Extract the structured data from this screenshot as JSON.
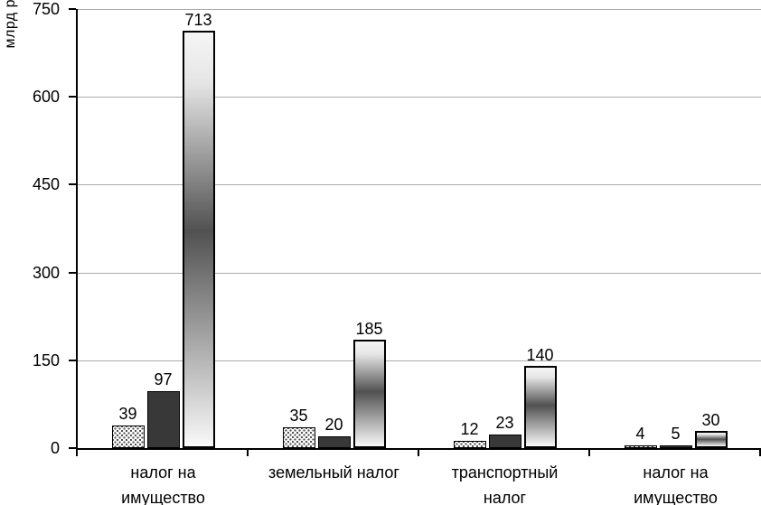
{
  "chart_data": {
    "type": "bar",
    "title": "",
    "ylabel": "млрд р.",
    "xlabel": "",
    "ylim": [
      0,
      750
    ],
    "yticks": [
      0,
      150,
      300,
      450,
      600,
      750
    ],
    "grid": true,
    "legend": "none",
    "bar_value_labels_shown": true,
    "categories": [
      "налог на\nимущество",
      "земельный налог",
      "транспортный\nналог",
      "налог на\nимущество"
    ],
    "series": [
      {
        "style": "dotted",
        "values": [
          39,
          35,
          12,
          4
        ]
      },
      {
        "style": "dark-solid",
        "values": [
          97,
          20,
          23,
          5
        ]
      },
      {
        "style": "gradient",
        "values": [
          713,
          185,
          140,
          30
        ]
      }
    ],
    "colors": {
      "background": "#ffffff",
      "axis": "#000000",
      "gridline": "#ababab",
      "text": "#000000",
      "dark_bar_fill": "#383838",
      "gradient_bar_mid": "#515151",
      "dotted_bar_dot": "#4a4a4a"
    }
  }
}
